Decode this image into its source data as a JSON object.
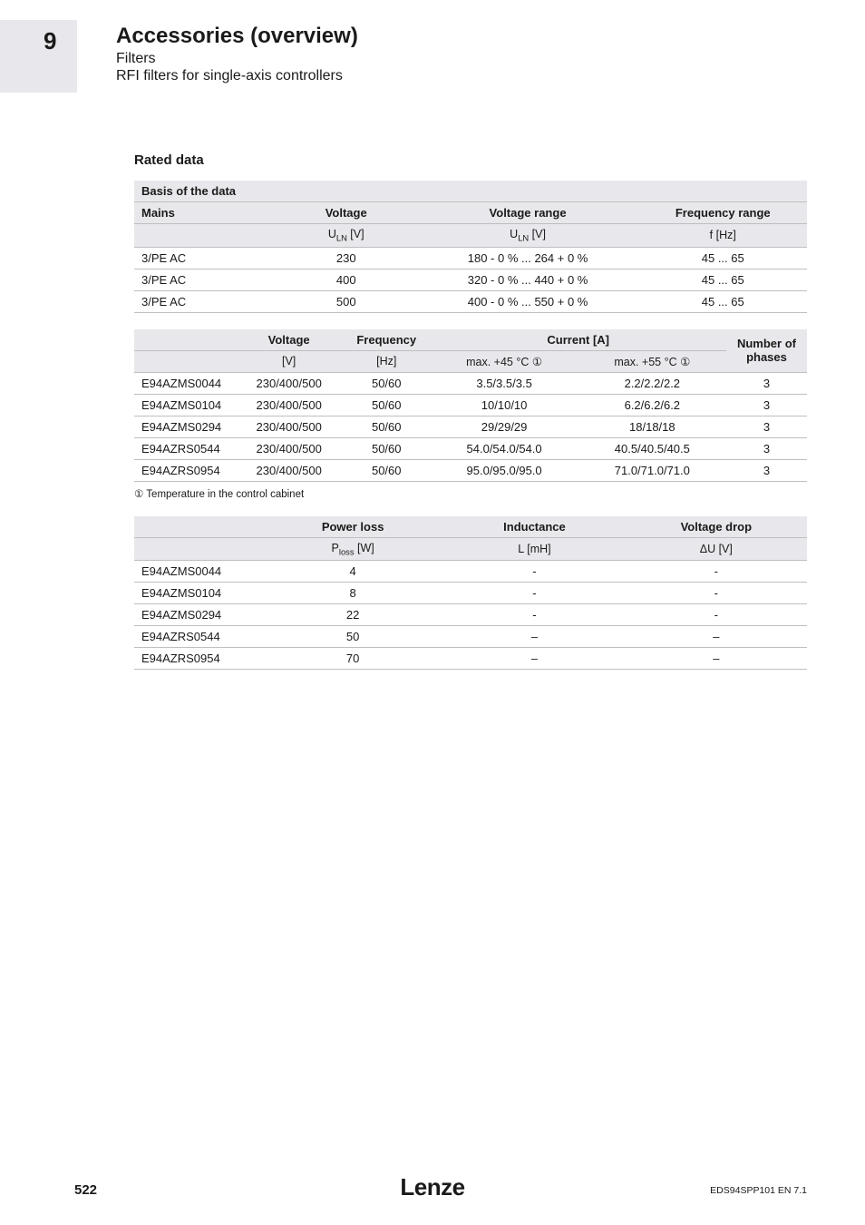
{
  "header": {
    "chapter": "9",
    "title": "Accessories (overview)",
    "sub1": "Filters",
    "sub2": "RFI filters for single-axis controllers"
  },
  "section_heading": "Rated data",
  "table1": {
    "caption": "Basis of the data",
    "headers": [
      "Mains",
      "Voltage",
      "Voltage range",
      "Frequency range"
    ],
    "units": [
      "",
      "U_LN [V]",
      "U_LN [V]",
      "f [Hz]"
    ],
    "rows": [
      [
        "3/PE AC",
        "230",
        "180 - 0 % ... 264 + 0 %",
        "45 ... 65"
      ],
      [
        "3/PE AC",
        "400",
        "320 - 0 % ... 440 + 0 %",
        "45 ... 65"
      ],
      [
        "3/PE AC",
        "500",
        "400 - 0 % ... 550 + 0 %",
        "45 ... 65"
      ]
    ],
    "widths": [
      "21%",
      "21%",
      "33%",
      "25%"
    ]
  },
  "table2": {
    "headers": [
      "",
      "Voltage",
      "Frequency",
      "Current [A]",
      "Number of phases"
    ],
    "units": [
      "",
      "[V]",
      "[Hz]",
      "max. +45 °C ①",
      "max. +55 °C ①",
      ""
    ],
    "rows": [
      [
        "E94AZMS0044",
        "230/400/500",
        "50/60",
        "3.5/3.5/3.5",
        "2.2/2.2/2.2",
        "3"
      ],
      [
        "E94AZMS0104",
        "230/400/500",
        "50/60",
        "10/10/10",
        "6.2/6.2/6.2",
        "3"
      ],
      [
        "E94AZMS0294",
        "230/400/500",
        "50/60",
        "29/29/29",
        "18/18/18",
        "3"
      ],
      [
        "E94AZRS0544",
        "230/400/500",
        "50/60",
        "54.0/54.0/54.0",
        "40.5/40.5/40.5",
        "3"
      ],
      [
        "E94AZRS0954",
        "230/400/500",
        "50/60",
        "95.0/95.0/95.0",
        "71.0/71.0/71.0",
        "3"
      ]
    ],
    "widths": [
      "15%",
      "16%",
      "13%",
      "22%",
      "22%",
      "12%"
    ]
  },
  "footnote": "① Temperature in the control cabinet",
  "table3": {
    "headers": [
      "",
      "Power loss",
      "Inductance",
      "Voltage drop"
    ],
    "units": [
      "",
      "P_loss [W]",
      "L [mH]",
      "ΔU [V]"
    ],
    "rows": [
      [
        "E94AZMS0044",
        "4",
        "-",
        "-"
      ],
      [
        "E94AZMS0104",
        "8",
        "-",
        "-"
      ],
      [
        "E94AZMS0294",
        "22",
        "-",
        "-"
      ],
      [
        "E94AZRS0544",
        "50",
        "–",
        "–"
      ],
      [
        "E94AZRS0954",
        "70",
        "–",
        "–"
      ]
    ],
    "widths": [
      "19%",
      "27%",
      "27%",
      "27%"
    ]
  },
  "footer": {
    "page": "522",
    "brand": "Lenze",
    "doc": "EDS94SPP101  EN  7.1"
  }
}
